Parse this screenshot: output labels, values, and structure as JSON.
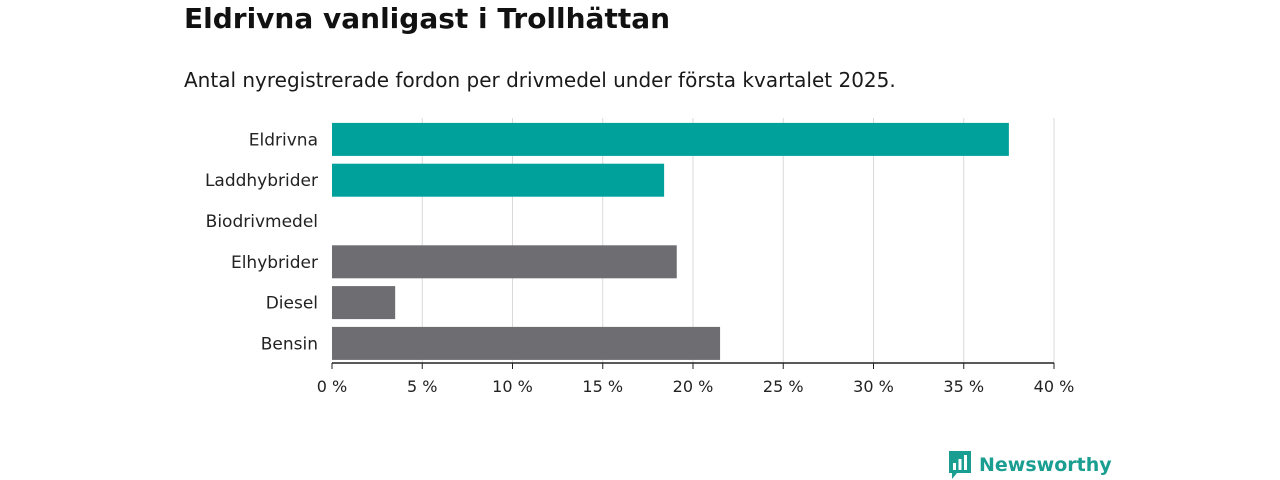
{
  "header": {
    "title": "Eldrivna vanligast i Trollhättan",
    "subtitle": "Antal nyregistrerade fordon per drivmedel under första kvartalet 2025."
  },
  "brand": {
    "name": "Newsworthy",
    "icon": "newsworthy-logo-icon"
  },
  "colors": {
    "highlight": "#00a19a",
    "default": "#6e6d72",
    "brand": "#1a9e92"
  },
  "chart_data": {
    "type": "bar",
    "orientation": "horizontal",
    "categories": [
      "Eldrivna",
      "Laddhybrider",
      "Biodrivmedel",
      "Elhybrider",
      "Diesel",
      "Bensin"
    ],
    "values": [
      37.5,
      18.4,
      0,
      19.1,
      3.5,
      21.5
    ],
    "highlighted": [
      true,
      true,
      false,
      false,
      false,
      false
    ],
    "xlim": [
      0,
      40
    ],
    "xticks": [
      0,
      5,
      10,
      15,
      20,
      25,
      30,
      35,
      40
    ],
    "xtick_labels": [
      "0 %",
      "5 %",
      "10 %",
      "15 %",
      "20 %",
      "25 %",
      "30 %",
      "35 %",
      "40 %"
    ],
    "grid": true
  }
}
